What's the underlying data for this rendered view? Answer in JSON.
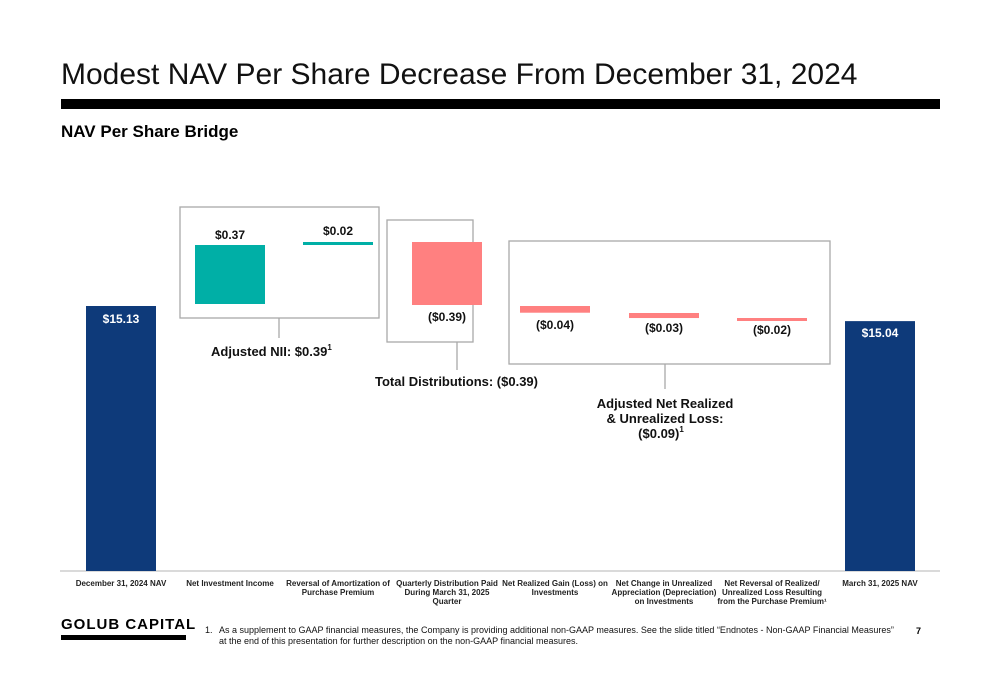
{
  "page": {
    "title": "Modest NAV Per Share Decrease From December 31, 2024",
    "subtitle": "NAV Per Share Bridge",
    "logo": "GOLUB CAPITAL",
    "page_number": "7",
    "footnote_number": "1.",
    "footnote_text": "As a supplement to GAAP financial measures, the Company is providing additional non-GAAP measures. See the slide titled “Endnotes - Non-GAAP Financial Measures” at the end of this presentation for further description on the non-GAAP financial measures."
  },
  "chart_data": {
    "type": "bar",
    "subtype": "waterfall",
    "categories": [
      "December 31, 2024 NAV",
      "Net Investment Income",
      "Reversal of Amortization of Purchase Premium",
      "Quarterly Distribution Paid During March 31, 2025 Quarter",
      "Net Realized Gain (Loss) on Investments",
      "Net Change in Unrealized Appreciation (Depreciation) on Investments",
      "Net Reversal of Realized/ Unrealized Loss Resulting from the Purchase Premium¹",
      "March 31, 2025 NAV"
    ],
    "values": [
      15.13,
      0.37,
      0.02,
      -0.39,
      -0.04,
      -0.03,
      -0.02,
      15.04
    ],
    "labels": [
      "$15.13",
      "$0.37",
      "$0.02",
      "($0.39)",
      "($0.04)",
      "($0.03)",
      "($0.02)",
      "$15.04"
    ],
    "bar_kinds": [
      "total",
      "increase",
      "increase",
      "decrease",
      "decrease",
      "decrease",
      "decrease",
      "total"
    ],
    "colors": {
      "total": "#0e3a7a",
      "increase": "#00afa6",
      "decrease": "#ff8080"
    },
    "groups": [
      {
        "label": "Adjusted NII: $0.39",
        "superscript": "1",
        "bars": [
          1,
          2
        ]
      },
      {
        "label": "Total Distributions: ($0.39)",
        "superscript": "",
        "bars": [
          3
        ]
      },
      {
        "label_lines": [
          "Adjusted Net Realized",
          "& Unrealized Loss:",
          "($0.09)"
        ],
        "superscript": "1",
        "bars": [
          4,
          5,
          6
        ]
      }
    ]
  }
}
